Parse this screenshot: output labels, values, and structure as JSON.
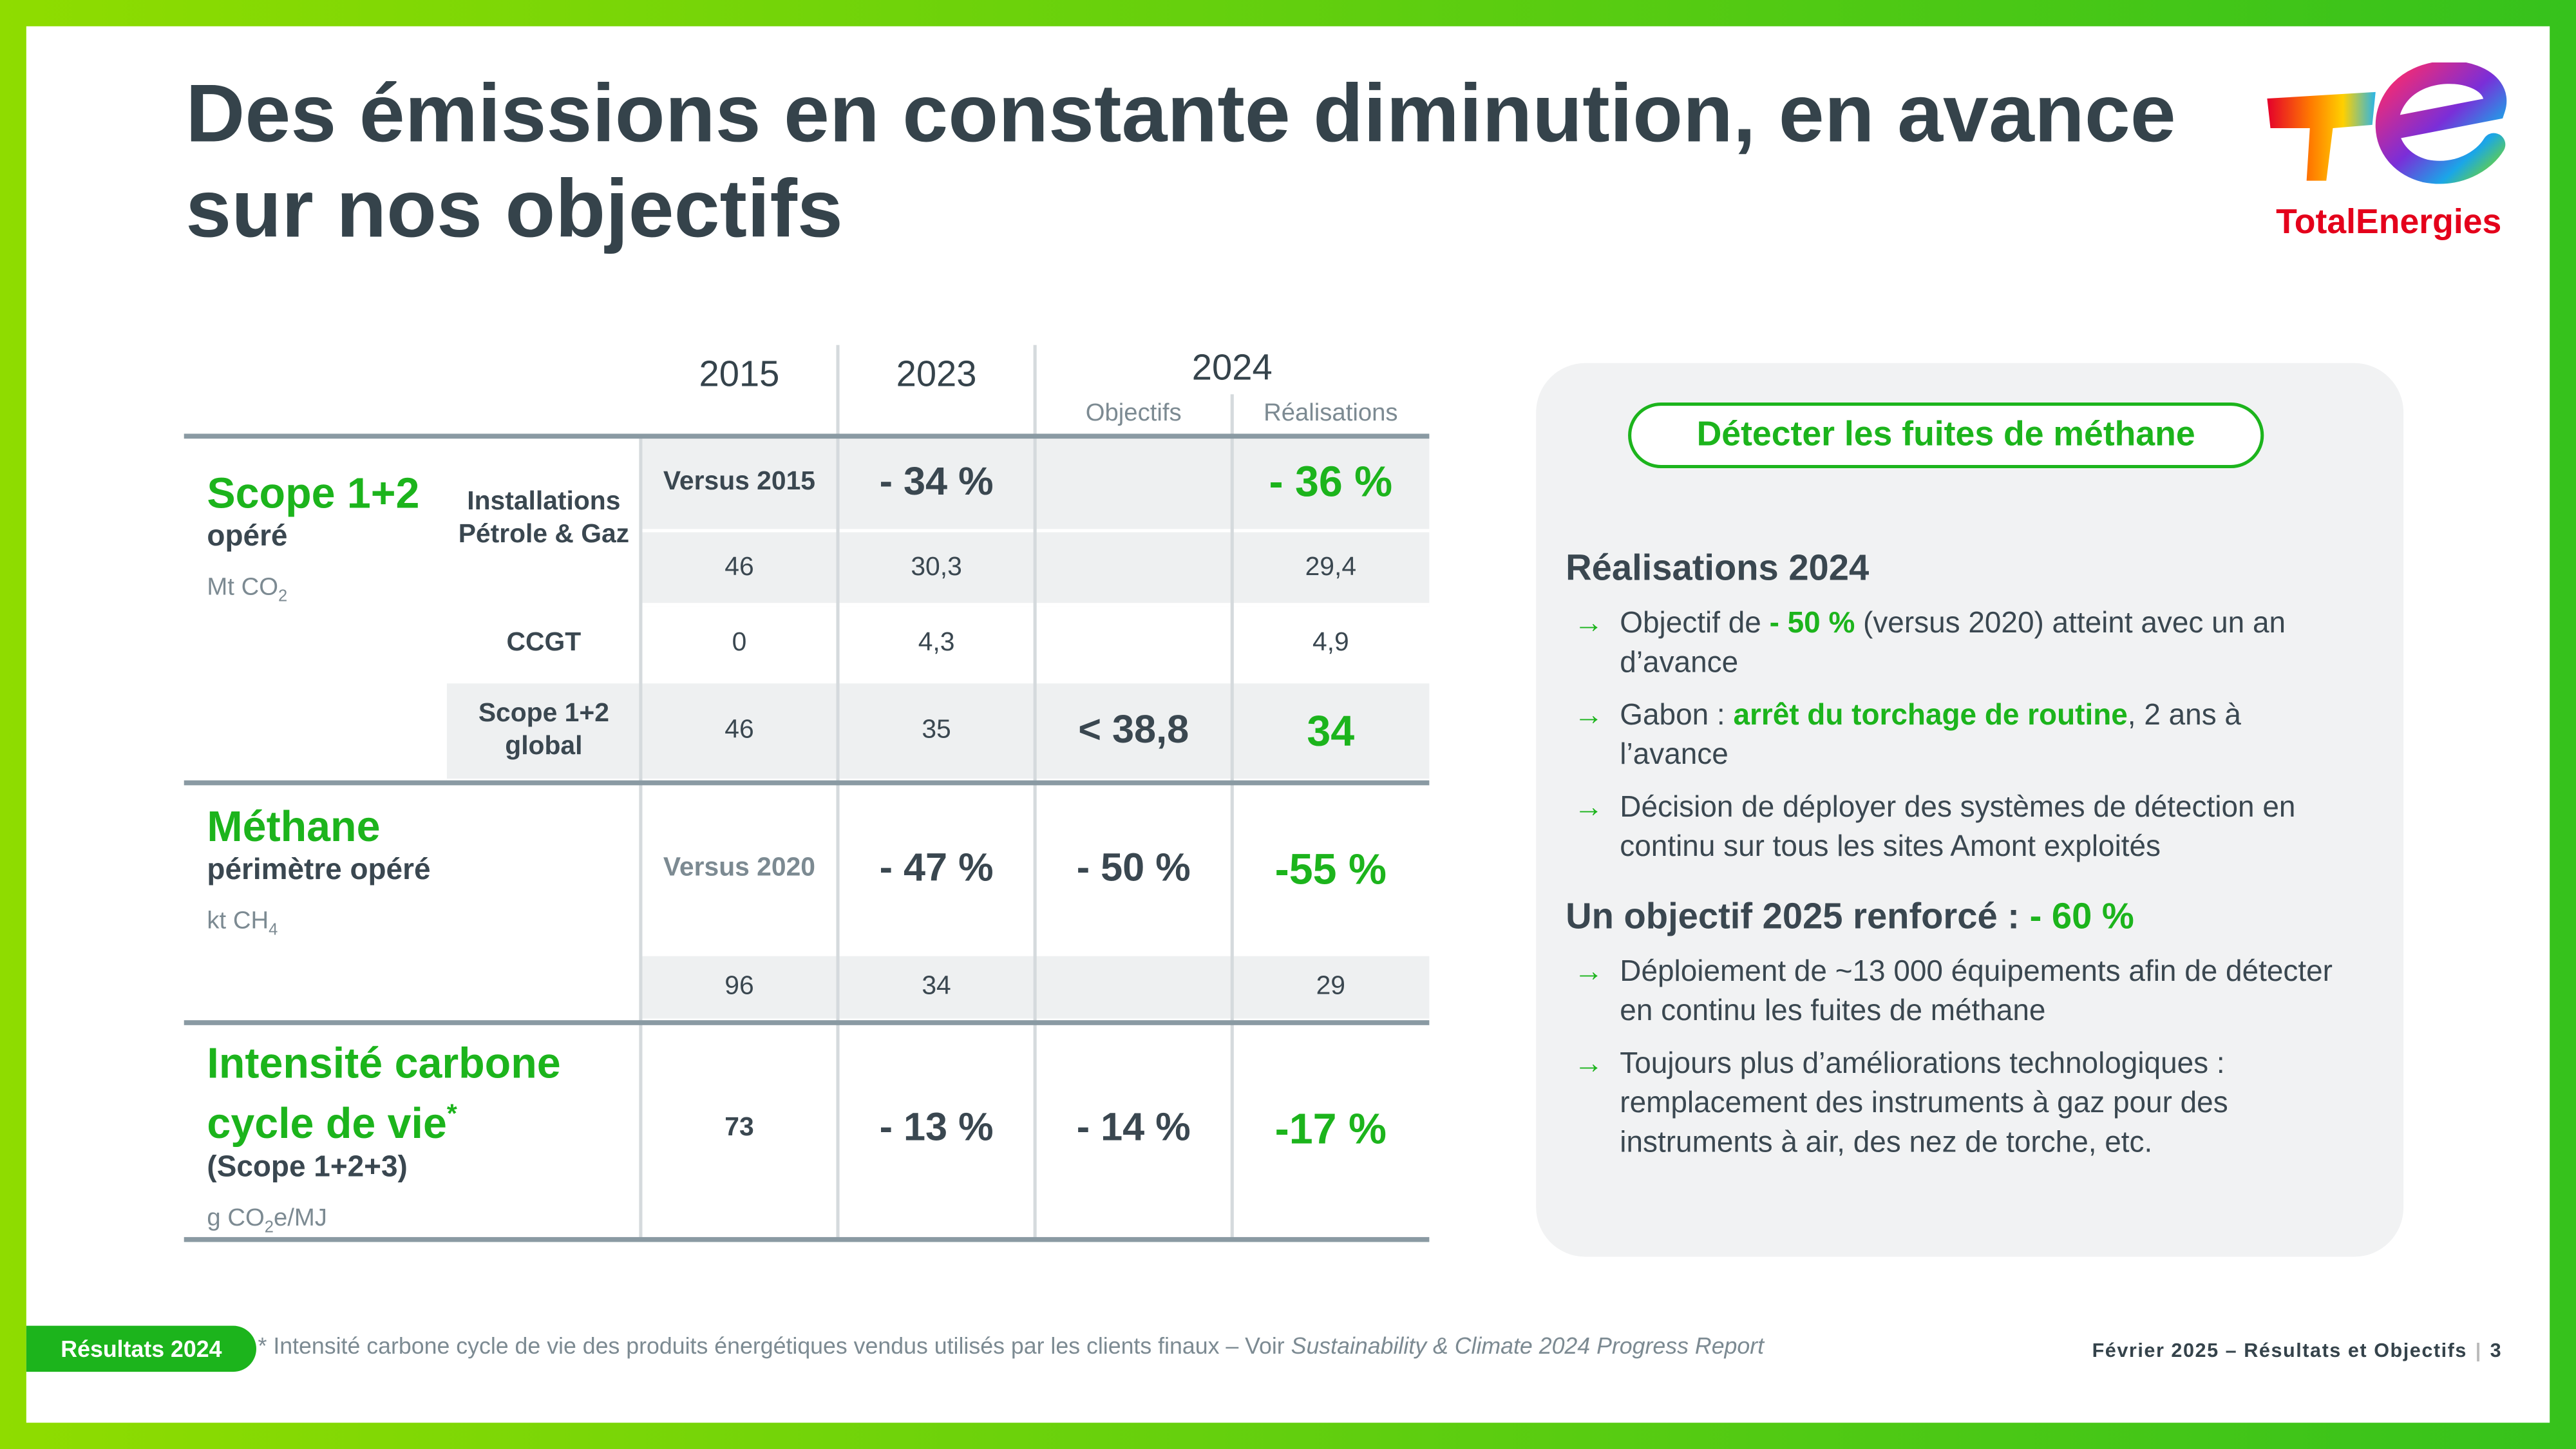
{
  "header": {
    "title": "Des émissions en constante diminution, en avance sur nos objectifs",
    "logo": "TotalEnergies"
  },
  "table": {
    "columns": [
      "2015",
      "2023",
      "2024"
    ],
    "subcolumns": [
      "Objectifs",
      "Réalisations"
    ],
    "sections": [
      {
        "title": "Scope 1+2",
        "subtitle": "opéré",
        "unit": "Mt CO",
        "unit_sub": "2",
        "rows": [
          {
            "label": "Installations Pétrole & Gaz",
            "cells": [
              "Versus 2015",
              "- 34 %",
              null,
              "- 36 %"
            ]
          },
          {
            "cells": [
              "46",
              "30,3",
              null,
              "29,4"
            ]
          },
          {
            "label": "CCGT",
            "cells": [
              "0",
              "4,3",
              null,
              "4,9"
            ]
          },
          {
            "label": "Scope 1+2 global",
            "cells": [
              "46",
              "35",
              "< 38,8",
              "34"
            ]
          }
        ]
      },
      {
        "title": "Méthane",
        "subtitle": "périmètre opéré",
        "unit": "kt CH",
        "unit_sub": "4",
        "rows": [
          {
            "cells": [
              "Versus 2020",
              "- 47 %",
              "- 50 %",
              "-55 %"
            ]
          },
          {
            "cells": [
              "96",
              "34",
              null,
              "29"
            ]
          }
        ]
      },
      {
        "title": "Intensité carbone cycle de vie",
        "title_mark": "*",
        "subtitle": "(Scope 1+2+3)",
        "unit": "g CO",
        "unit_sub": "2",
        "unit_tail": "e/MJ",
        "rows": [
          {
            "cells": [
              "73",
              "- 13 %",
              "- 14 %",
              "-17 %"
            ]
          }
        ]
      }
    ]
  },
  "panel": {
    "tag": "Détecter les fuites de méthane",
    "blocks": [
      {
        "heading": [
          {
            "text": "Réalisations 2024"
          }
        ],
        "bullets": [
          [
            {
              "text": "Objectif de "
            },
            {
              "text": "- 50 %",
              "em": true
            },
            {
              "text": " (versus 2020) atteint avec un an d’avance"
            }
          ],
          [
            {
              "text": "Gabon : "
            },
            {
              "text": "arrêt du torchage de routine",
              "em": true
            },
            {
              "text": ", 2 ans à l’avance"
            }
          ],
          [
            {
              "text": "Décision de déployer des systèmes de détection en continu sur tous les sites Amont exploités"
            }
          ]
        ]
      },
      {
        "heading": [
          {
            "text": "Un objectif 2025 renforcé : "
          },
          {
            "text": "- 60 %",
            "em": true
          }
        ],
        "bullets": [
          [
            {
              "text": "Déploiement de ~13 000 équipements afin de détecter en continu les fuites de méthane"
            }
          ],
          [
            {
              "text": "Toujours plus d’améliorations technologiques : remplacement des instruments à gaz pour des instruments à air, des nez de torche, etc."
            }
          ]
        ]
      }
    ]
  },
  "footer": {
    "badge": "Résultats 2024",
    "note": "* Intensité carbone cycle de vie des produits énergétiques vendus utilisés par les clients finaux – Voir ",
    "note_em": "Sustainability & Climate 2024 Progress Report",
    "right": "Février 2025 – Résultats et Objectifs",
    "page": "3"
  }
}
